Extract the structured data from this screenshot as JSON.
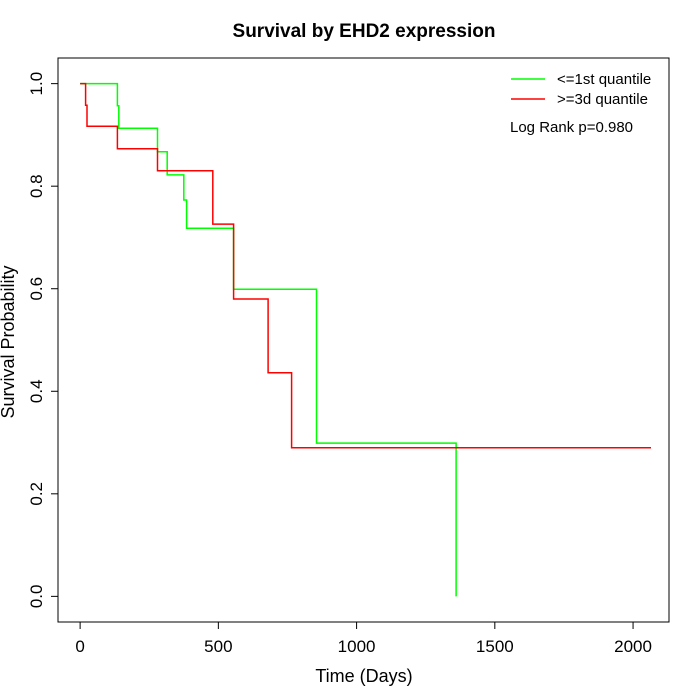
{
  "chart_data": {
    "type": "line",
    "title": "Survival by EHD2 expression",
    "xlabel": "Time (Days)",
    "ylabel": "Survival Probability",
    "xlim": [
      -80,
      2130
    ],
    "ylim": [
      -0.05,
      1.05
    ],
    "x_ticks": [
      0,
      500,
      1000,
      1500,
      2000
    ],
    "x_tick_labels": [
      "0",
      "500",
      "1000",
      "1500",
      "2000"
    ],
    "y_ticks": [
      0.0,
      0.2,
      0.4,
      0.6,
      0.8,
      1.0
    ],
    "y_tick_labels": [
      "0.0",
      "0.2",
      "0.4",
      "0.6",
      "0.8",
      "1.0"
    ],
    "grid": false,
    "legend_position": "top-right",
    "annotation": "Log Rank p=0.980",
    "series": [
      {
        "name": "<=1st quantile",
        "color": "#00ff00",
        "step_points": [
          [
            0,
            1.0
          ],
          [
            135,
            1.0
          ],
          [
            135,
            0.957
          ],
          [
            140,
            0.957
          ],
          [
            140,
            0.913
          ],
          [
            280,
            0.913
          ],
          [
            280,
            0.867
          ],
          [
            315,
            0.867
          ],
          [
            315,
            0.822
          ],
          [
            375,
            0.822
          ],
          [
            375,
            0.773
          ],
          [
            385,
            0.773
          ],
          [
            385,
            0.718
          ],
          [
            555,
            0.718
          ],
          [
            555,
            0.599
          ],
          [
            855,
            0.599
          ],
          [
            855,
            0.299
          ],
          [
            1360,
            0.299
          ],
          [
            1360,
            0.0
          ]
        ]
      },
      {
        "name": ">=3d quantile",
        "color": "#ff0000",
        "step_points": [
          [
            0,
            1.0
          ],
          [
            20,
            1.0
          ],
          [
            20,
            0.958
          ],
          [
            25,
            0.958
          ],
          [
            25,
            0.917
          ],
          [
            135,
            0.917
          ],
          [
            135,
            0.873
          ],
          [
            280,
            0.873
          ],
          [
            280,
            0.83
          ],
          [
            480,
            0.83
          ],
          [
            480,
            0.726
          ],
          [
            555,
            0.726
          ],
          [
            555,
            0.58
          ],
          [
            680,
            0.58
          ],
          [
            680,
            0.436
          ],
          [
            765,
            0.436
          ],
          [
            765,
            0.29
          ],
          [
            2065,
            0.29
          ]
        ]
      }
    ]
  }
}
